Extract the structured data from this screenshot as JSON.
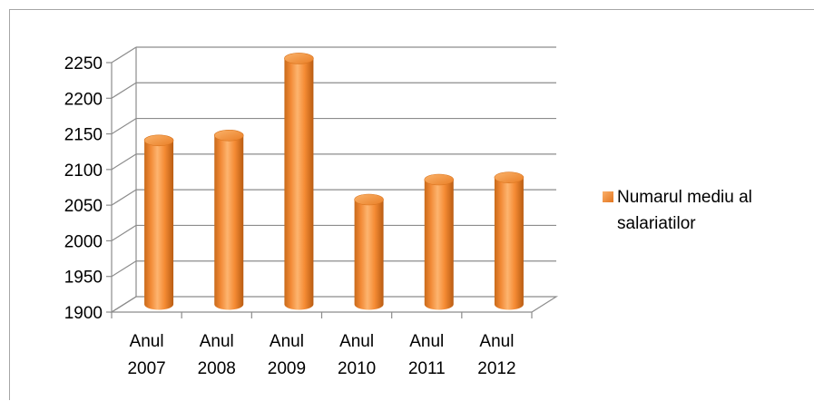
{
  "chart_data": {
    "type": "bar",
    "style": "3d-cylinder",
    "categories": [
      [
        "Anul",
        "2007"
      ],
      [
        "Anul",
        "2008"
      ],
      [
        "Anul",
        "2009"
      ],
      [
        "Anul",
        "2010"
      ],
      [
        "Anul",
        "2011"
      ],
      [
        "Anul",
        "2012"
      ]
    ],
    "series": [
      {
        "name": [
          "Numarul mediu al",
          "salariatilor"
        ],
        "values": [
          2130,
          2137,
          2245,
          2047,
          2075,
          2078
        ],
        "color": "#f7963c"
      }
    ],
    "title": "",
    "xlabel": "",
    "ylabel": "",
    "ylim": [
      1900,
      2250
    ],
    "yticks": [
      1900,
      1950,
      2000,
      2050,
      2100,
      2150,
      2200,
      2250
    ],
    "grid": true,
    "legend": "right"
  }
}
